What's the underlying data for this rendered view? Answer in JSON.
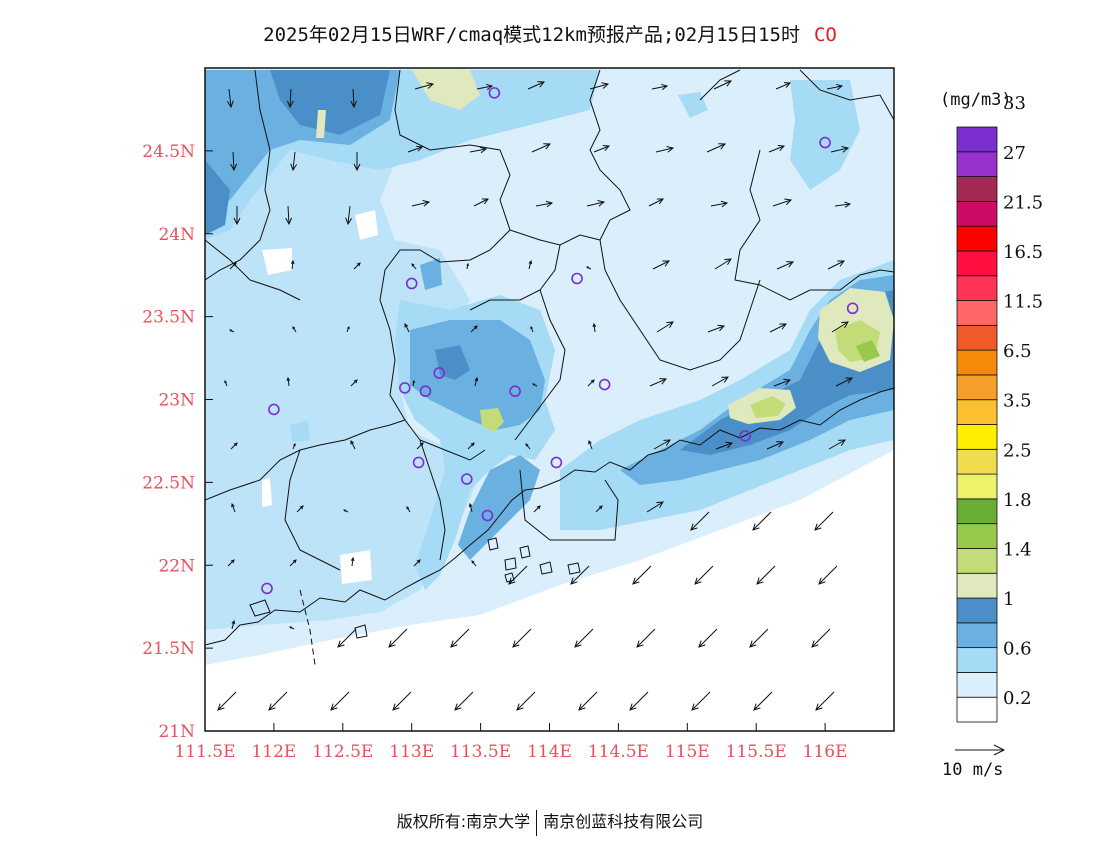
{
  "title": {
    "text": "2025年02月15日WRF/cmaq模式12km预报产品;02月15日15时",
    "species": "CO"
  },
  "map": {
    "lon_range": [
      111.5,
      116.5
    ],
    "lat_range": [
      21,
      25
    ],
    "x_ticks": [
      "111.5E",
      "112E",
      "112.5E",
      "113E",
      "113.5E",
      "114E",
      "114.5E",
      "115E",
      "115.5E",
      "116E"
    ],
    "y_ticks": [
      "21N",
      "21.5N",
      "22N",
      "22.5N",
      "23N",
      "23.5N",
      "24N",
      "24.5N"
    ],
    "tick_color": "#e8505b",
    "stations_color": "#7b2fd0",
    "stations": [
      {
        "lon": 113.6,
        "lat": 24.85
      },
      {
        "lon": 116.0,
        "lat": 24.55
      },
      {
        "lon": 113.0,
        "lat": 23.7
      },
      {
        "lon": 114.2,
        "lat": 23.73
      },
      {
        "lon": 116.2,
        "lat": 23.55
      },
      {
        "lon": 113.2,
        "lat": 23.16
      },
      {
        "lon": 113.1,
        "lat": 23.05
      },
      {
        "lon": 113.75,
        "lat": 23.05
      },
      {
        "lon": 114.4,
        "lat": 23.09
      },
      {
        "lon": 112.95,
        "lat": 23.07
      },
      {
        "lon": 112.0,
        "lat": 22.94
      },
      {
        "lon": 115.42,
        "lat": 22.78
      },
      {
        "lon": 113.05,
        "lat": 22.62
      },
      {
        "lon": 113.4,
        "lat": 22.52
      },
      {
        "lon": 114.05,
        "lat": 22.62
      },
      {
        "lon": 113.55,
        "lat": 22.3
      },
      {
        "lon": 111.95,
        "lat": 21.86
      }
    ]
  },
  "colorbar": {
    "unit": "(mg/m3)",
    "colors": [
      "#ffffff",
      "#daeefb",
      "#a6dbf5",
      "#6ab0e0",
      "#4a8fc8",
      "#dfe9bd",
      "#c4dc78",
      "#98c94a",
      "#6aae38",
      "#eef26a",
      "#f1dc50",
      "#ffee00",
      "#fbc02d",
      "#f6a02a",
      "#f58a0a",
      "#f05a28",
      "#ff6666",
      "#ff3355",
      "#ff1040",
      "#ff0000",
      "#cc0b66",
      "#a32a54",
      "#9932cc",
      "#7b2fd0"
    ],
    "labels": [
      "0.2",
      "0.6",
      "1",
      "1.4",
      "1.8",
      "2.5",
      "3.5",
      "6.5",
      "11.5",
      "16.5",
      "21.5",
      "27",
      "33"
    ]
  },
  "wind_reference": {
    "label": "10 m/s"
  },
  "footer": {
    "left": "版权所有:南京大学",
    "right": "南京创蓝科技有限公司"
  }
}
